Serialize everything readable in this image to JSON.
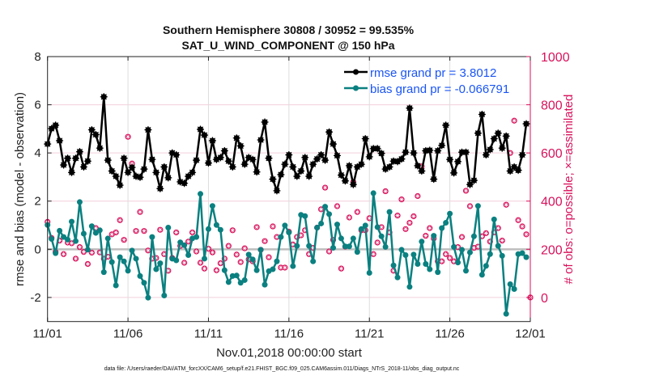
{
  "colors": {
    "rmse": "#000000",
    "bias": "#0b8080",
    "obs": "#d8125b",
    "legend_text": "#1a55f5",
    "zero_line": "#bdbdbd",
    "grid_h": "#f2cfdc",
    "grid_v": "#dddddd"
  },
  "chart_data": {
    "type": "line",
    "title": "Southern Hemisphere 30808 / 30952 = 99.535%",
    "subtitle": "SAT_U_WIND_COMPONENT @ 150 hPa",
    "xlabel": "Nov.01,2018 00:00:00 start",
    "ylabel": "rmse and bias (model - observation)",
    "ylabel_right": "# of obs: o=possible; ×=assimilated",
    "footnote": "data file: /Users/raeder/DAI/ATM_forcXX/CAM6_setup/f.e21.FHIST_BGC.f09_025.CAM6assim.011/Diags_NTrS_2018-11/obs_diag_output.nc",
    "x_unit": "6-hourly step from 11/01 (days = step/4)",
    "xlim_days": [
      0,
      30
    ],
    "xticks": [
      {
        "day": 0,
        "label": "11/01"
      },
      {
        "day": 5,
        "label": "11/06"
      },
      {
        "day": 10,
        "label": "11/11"
      },
      {
        "day": 15,
        "label": "11/16"
      },
      {
        "day": 20,
        "label": "11/21"
      },
      {
        "day": 25,
        "label": "11/26"
      },
      {
        "day": 30,
        "label": "12/01"
      }
    ],
    "ylim": [
      -3,
      8
    ],
    "yticks": [
      {
        "v": -2,
        "label": "-2"
      },
      {
        "v": 0,
        "label": "0"
      },
      {
        "v": 2,
        "label": "2"
      },
      {
        "v": 4,
        "label": "4"
      },
      {
        "v": 6,
        "label": "6"
      },
      {
        "v": 8,
        "label": "8"
      }
    ],
    "ylim_right": [
      -100,
      1000
    ],
    "yticks_right": [
      {
        "v": 0,
        "label": "0"
      },
      {
        "v": 200,
        "label": "200"
      },
      {
        "v": 400,
        "label": "400"
      },
      {
        "v": 600,
        "label": "600"
      },
      {
        "v": 800,
        "label": "800"
      },
      {
        "v": 1000,
        "label": "1000"
      }
    ],
    "legend": {
      "placement": "top-right",
      "entries": [
        "rmse grand pr = 3.8012",
        "bias grand pr = -0.066791"
      ]
    },
    "series": [
      {
        "name": "rmse",
        "values": [
          4.37,
          5.01,
          5.15,
          4.51,
          3.5,
          3.78,
          3.19,
          3.78,
          4.05,
          3.42,
          3.66,
          4.96,
          4.76,
          4.2,
          6.33,
          3.7,
          3.25,
          3.03,
          2.66,
          3.78,
          3.19,
          3.4,
          3.03,
          2.99,
          3.33,
          4.96,
          3.73,
          3.19,
          2.52,
          3.42,
          2.97,
          4.0,
          3.92,
          2.8,
          2.74,
          3.03,
          3.19,
          3.7,
          4.98,
          4.74,
          3.58,
          4.51,
          3.73,
          3.81,
          4.09,
          3.66,
          3.42,
          4.62,
          4.29,
          3.53,
          3.81,
          3.73,
          3.21,
          4.54,
          5.28,
          3.78,
          2.91,
          2.43,
          3.1,
          3.53,
          3.92,
          3.42,
          3.03,
          3.25,
          3.81,
          3.03,
          3.53,
          3.75,
          3.92,
          3.7,
          4.87,
          4.37,
          3.89,
          3.08,
          2.84,
          3.47,
          2.69,
          3.42,
          3.53,
          4.59,
          3.84,
          4.18,
          4.18,
          3.98,
          3.33,
          3.42,
          3.66,
          3.64,
          3.75,
          4.03,
          5.86,
          4.0,
          3.47,
          3.25,
          4.09,
          4.11,
          2.91,
          4.09,
          4.31,
          5.15,
          3.73,
          3.17,
          3.64,
          4.03,
          4.03,
          2.69,
          2.86,
          4.82,
          5.6,
          3.92,
          4.14,
          4.59,
          4.82,
          4.2,
          4.7,
          3.25,
          3.42,
          3.28,
          3.92,
          5.21
        ]
      },
      {
        "name": "bias",
        "values": [
          1.01,
          0.43,
          -0.16,
          0.77,
          0.51,
          0.4,
          1.15,
          0.34,
          1.96,
          0.65,
          -0.02,
          0.96,
          0.68,
          0.79,
          -0.95,
          0.45,
          -0.53,
          -1.5,
          -0.33,
          -0.5,
          -0.89,
          -0.05,
          -0.39,
          -1.11,
          -1.39,
          -2.01,
          0.51,
          -0.83,
          -0.58,
          -1.92,
          0.9,
          -0.39,
          -0.46,
          0.29,
          0.17,
          -0.24,
          0.45,
          0.51,
          2.3,
          -0.39,
          0.84,
          1.8,
          1.01,
          0.81,
          -0.87,
          -1.36,
          -1.11,
          -1.09,
          -1.39,
          -1.28,
          -0.22,
          -0.42,
          -0.87,
          -0.02,
          -1.47,
          -0.91,
          -0.83,
          -0.5,
          0.51,
          0.99,
          0.7,
          -0.7,
          0.14,
          1.43,
          1.38,
          0.14,
          -0.5,
          0.9,
          1.07,
          1.77,
          1.46,
          0.06,
          1.03,
          0.45,
          0.12,
          0.12,
          0.45,
          -0.11,
          0.84,
          0.99,
          -0.98,
          2.33,
          0.92,
          0.54,
          0.1,
          1.55,
          -0.67,
          -1.17,
          -0.02,
          -0.24,
          -1.56,
          -0.22,
          -0.61,
          0.32,
          -0.61,
          -0.83,
          0.56,
          -0.95,
          0.88,
          1.1,
          1.48,
          0.1,
          -0.55,
          -0.02,
          -0.89,
          -0.13,
          0.54,
          1.8,
          -1.06,
          -0.69,
          -0.2,
          1.24,
          0.14,
          -0.27,
          -2.68,
          -1.45,
          -1.65,
          -0.2,
          -0.16,
          -0.33
        ]
      },
      {
        "name": "obs_count",
        "axis": "right",
        "values": [
          314,
          247,
          189,
          236,
          180,
          228,
          225,
          161,
          209,
          189,
          139,
          186,
          288,
          187,
          161,
          169,
          262,
          270,
          321,
          239,
          667,
          556,
          276,
          355,
          276,
          195,
          161,
          164,
          281,
          180,
          111,
          164,
          270,
          214,
          144,
          232,
          270,
          191,
          144,
          120,
          202,
          187,
          113,
          142,
          161,
          214,
          279,
          178,
          147,
          204,
          158,
          150,
          292,
          198,
          234,
          167,
          295,
          251,
          124,
          124,
          273,
          220,
          251,
          258,
          279,
          180,
          206,
          290,
          366,
          456,
          191,
          239,
          379,
          120,
          211,
          332,
          480,
          355,
          279,
          279,
          329,
          180,
          228,
          292,
          441,
          270,
          111,
          340,
          407,
          284,
          310,
          337,
          421,
          544,
          256,
          288,
          245,
          150,
          150,
          180,
          164,
          150,
          209,
          251,
          443,
          379,
          206,
          211,
          254,
          267,
          232,
          270,
          288,
          236,
          385,
          600,
          734,
          321,
          295,
          262,
          0
        ]
      }
    ]
  }
}
